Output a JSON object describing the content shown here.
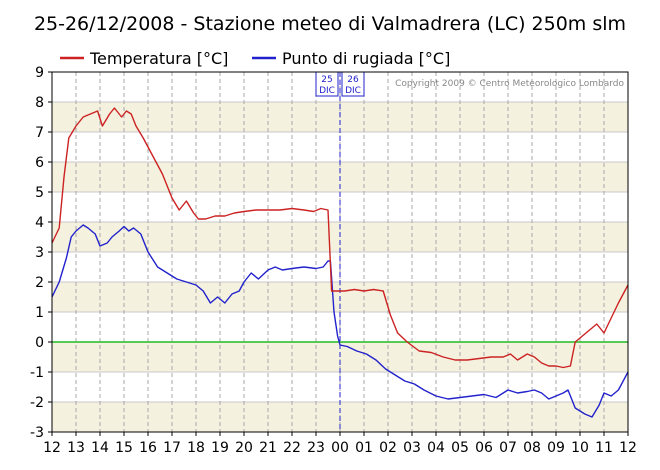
{
  "chart_data": {
    "type": "line",
    "title": "25-26/12/2008 - Stazione meteo di Valmadrera (LC) 250m slm",
    "copyright": "Copyright 2009 © Centro Meteorologico Lombardo",
    "xlabel": "",
    "ylabel": "",
    "ylim": [
      -3,
      9
    ],
    "xlim": [
      12,
      36
    ],
    "x_tick_labels": [
      "12",
      "13",
      "14",
      "15",
      "16",
      "17",
      "18",
      "19",
      "20",
      "21",
      "22",
      "23",
      "00",
      "01",
      "02",
      "03",
      "04",
      "05",
      "06",
      "07",
      "08",
      "09",
      "10",
      "11",
      "12"
    ],
    "y_ticks": [
      -3,
      -2,
      -1,
      0,
      1,
      2,
      3,
      4,
      5,
      6,
      7,
      8,
      9
    ],
    "grid": true,
    "legend_position": "top-left",
    "day_marker": {
      "x": 24,
      "left_label": [
        "25",
        "DIC"
      ],
      "right_label": [
        "26",
        "DIC"
      ]
    },
    "zero_line_color": "#22bb22",
    "series": [
      {
        "name": "Temperatura [°C]",
        "color": "#cc2222",
        "x": [
          12,
          12.3,
          12.5,
          12.7,
          13,
          13.3,
          13.6,
          13.9,
          14.1,
          14.4,
          14.6,
          14.9,
          15.1,
          15.3,
          15.5,
          15.8,
          16.2,
          16.6,
          17,
          17.3,
          17.6,
          17.9,
          18.1,
          18.4,
          18.8,
          19.2,
          19.6,
          20,
          20.5,
          21,
          21.5,
          22,
          22.5,
          22.9,
          23.2,
          23.5,
          23.65,
          23.8,
          24.2,
          24.6,
          25,
          25.4,
          25.8,
          26.1,
          26.4,
          26.8,
          27.3,
          27.8,
          28.3,
          28.8,
          29.3,
          29.8,
          30.3,
          30.8,
          31.1,
          31.4,
          31.6,
          31.8,
          32.1,
          32.4,
          32.7,
          33,
          33.3,
          33.6,
          33.8,
          34.1,
          34.4,
          34.7,
          35,
          35.3,
          35.6,
          36
        ],
        "values": [
          3.3,
          3.8,
          5.5,
          6.8,
          7.2,
          7.5,
          7.6,
          7.7,
          7.2,
          7.6,
          7.8,
          7.5,
          7.7,
          7.6,
          7.2,
          6.8,
          6.2,
          5.6,
          4.8,
          4.4,
          4.7,
          4.3,
          4.1,
          4.1,
          4.2,
          4.2,
          4.3,
          4.35,
          4.4,
          4.4,
          4.4,
          4.45,
          4.4,
          4.35,
          4.45,
          4.4,
          1.7,
          1.7,
          1.7,
          1.75,
          1.7,
          1.75,
          1.7,
          0.9,
          0.3,
          0.0,
          -0.3,
          -0.35,
          -0.5,
          -0.6,
          -0.6,
          -0.55,
          -0.5,
          -0.5,
          -0.4,
          -0.6,
          -0.5,
          -0.4,
          -0.5,
          -0.7,
          -0.8,
          -0.8,
          -0.85,
          -0.8,
          0.0,
          0.2,
          0.4,
          0.6,
          0.3,
          0.8,
          1.3,
          1.9
        ]
      },
      {
        "name": "Punto di rugiada [°C]",
        "color": "#2222cc",
        "x": [
          12,
          12.3,
          12.6,
          12.8,
          13,
          13.3,
          13.5,
          13.8,
          14,
          14.3,
          14.5,
          14.8,
          15,
          15.2,
          15.4,
          15.7,
          16,
          16.4,
          16.8,
          17.2,
          17.6,
          18,
          18.3,
          18.6,
          18.9,
          19.2,
          19.5,
          19.8,
          20,
          20.3,
          20.6,
          21,
          21.3,
          21.6,
          22,
          22.5,
          23,
          23.3,
          23.5,
          23.6,
          23.75,
          23.9,
          24,
          24.3,
          24.7,
          25.1,
          25.5,
          25.9,
          26.3,
          26.7,
          27.1,
          27.5,
          28,
          28.5,
          29,
          29.5,
          30,
          30.5,
          31,
          31.4,
          31.8,
          32.1,
          32.4,
          32.7,
          33,
          33.3,
          33.5,
          33.8,
          34,
          34.2,
          34.5,
          34.8,
          35,
          35.3,
          35.6,
          36
        ],
        "values": [
          1.5,
          2.0,
          2.8,
          3.5,
          3.7,
          3.9,
          3.8,
          3.6,
          3.2,
          3.3,
          3.5,
          3.7,
          3.85,
          3.7,
          3.8,
          3.6,
          3.0,
          2.5,
          2.3,
          2.1,
          2.0,
          1.9,
          1.7,
          1.3,
          1.5,
          1.3,
          1.6,
          1.7,
          2.0,
          2.3,
          2.1,
          2.4,
          2.5,
          2.4,
          2.45,
          2.5,
          2.45,
          2.5,
          2.7,
          2.7,
          1.0,
          0.2,
          -0.1,
          -0.15,
          -0.3,
          -0.4,
          -0.6,
          -0.9,
          -1.1,
          -1.3,
          -1.4,
          -1.6,
          -1.8,
          -1.9,
          -1.85,
          -1.8,
          -1.75,
          -1.85,
          -1.6,
          -1.7,
          -1.65,
          -1.6,
          -1.7,
          -1.9,
          -1.8,
          -1.7,
          -1.6,
          -2.2,
          -2.3,
          -2.4,
          -2.5,
          -2.1,
          -1.7,
          -1.8,
          -1.6,
          -1.0
        ]
      }
    ]
  }
}
